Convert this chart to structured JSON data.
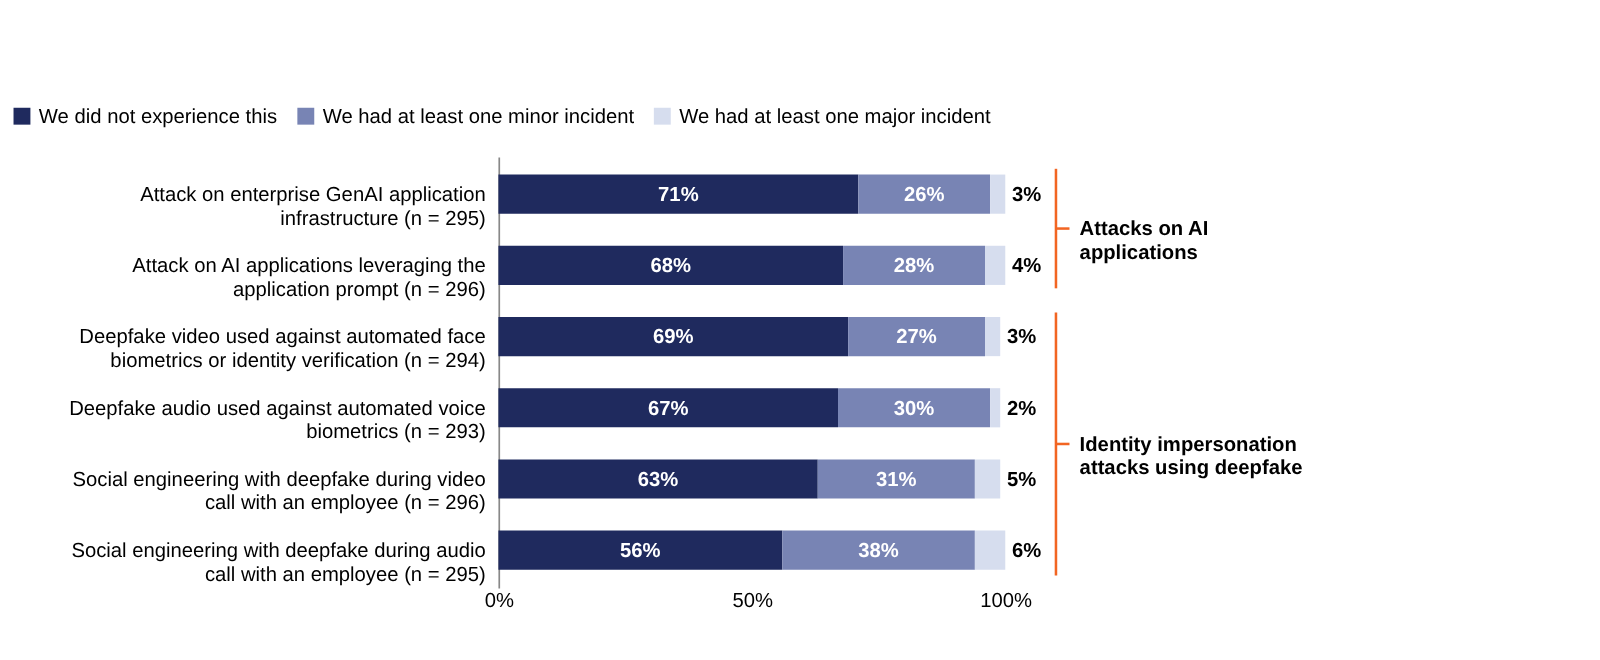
{
  "chart_data": {
    "type": "bar",
    "orientation": "horizontal",
    "stacked": true,
    "categories": [
      "Attack on enterprise GenAI application infrastructure (n = 295)",
      "Attack on AI applications leveraging the application prompt (n = 296)",
      "Deepfake video used against automated face biometrics or identity verification (n = 294)",
      "Deepfake audio used against automated voice biometrics (n = 293)",
      "Social engineering with deepfake during video call with an employee (n = 296)",
      "Social engineering with deepfake during audio call with an employee (n = 295)"
    ],
    "series": [
      {
        "name": "We did not experience this",
        "color": "#1f2a5e",
        "values": [
          71,
          68,
          69,
          67,
          63,
          56
        ],
        "value_labels": [
          "71%",
          "68%",
          "69%",
          "67%",
          "63%",
          "56%"
        ]
      },
      {
        "name": "We had at least one minor incident",
        "color": "#7884b4",
        "values": [
          26,
          28,
          27,
          30,
          31,
          38
        ],
        "value_labels": [
          "26%",
          "28%",
          "27%",
          "30%",
          "31%",
          "38%"
        ]
      },
      {
        "name": "We had at least one major incident",
        "color": "#d6ddee",
        "values": [
          3,
          4,
          3,
          2,
          5,
          6
        ],
        "value_labels": [
          "3%",
          "4%",
          "3%",
          "2%",
          "5%",
          "6%"
        ]
      }
    ],
    "xlim": [
      0,
      100
    ],
    "xticks": [
      {
        "value": 0,
        "label": "0%"
      },
      {
        "value": 50,
        "label": "50%"
      },
      {
        "value": 100,
        "label": "100%"
      }
    ],
    "grid": false,
    "legend": "top",
    "annotations": [
      "Attacks on AI applications",
      "Identity impersonation attacks using deepfake"
    ]
  }
}
